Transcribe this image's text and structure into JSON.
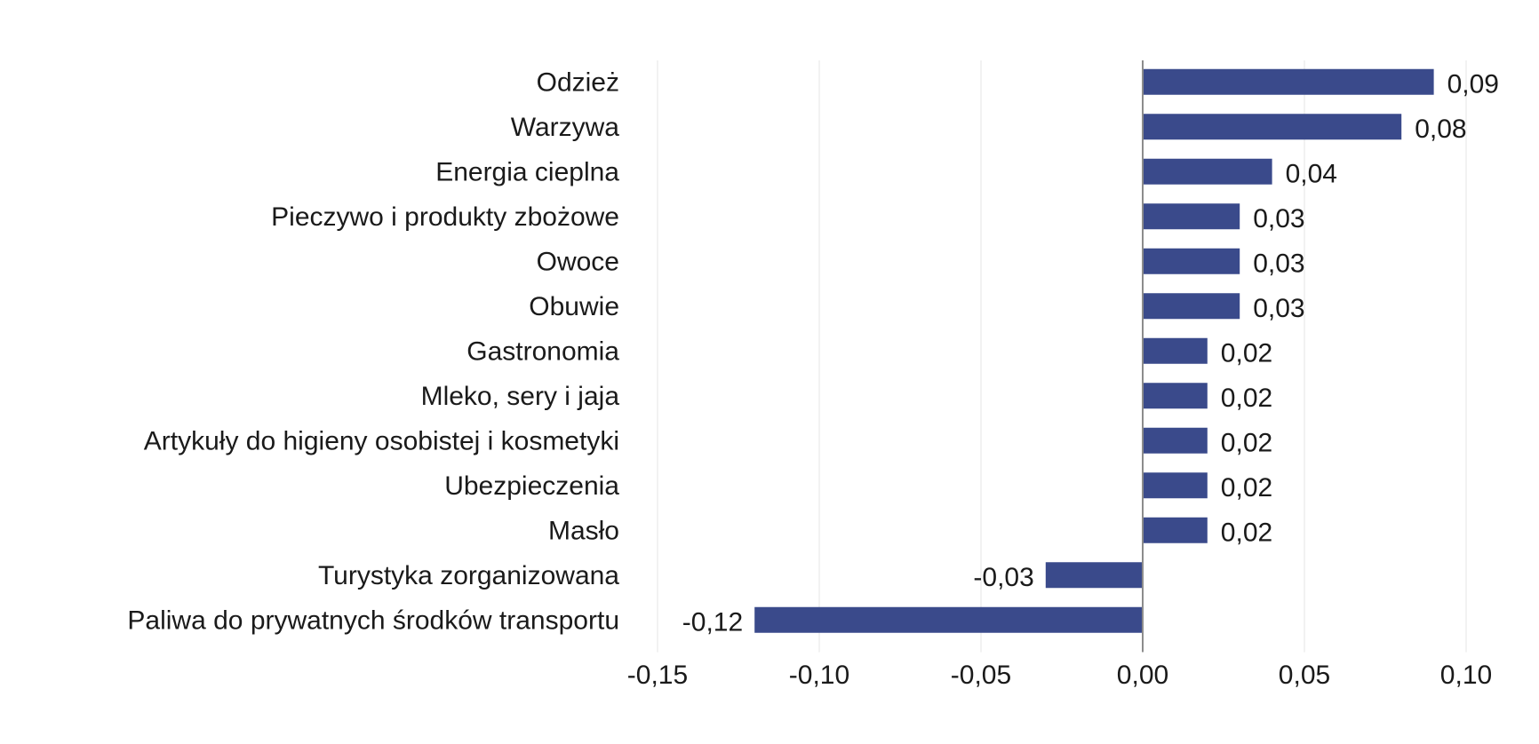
{
  "chart_data": {
    "type": "bar",
    "orientation": "horizontal",
    "title": "",
    "xlabel": "",
    "ylabel": "",
    "categories": [
      "Odzież",
      "Warzywa",
      "Energia cieplna",
      "Pieczywo i produkty zbożowe",
      "Owoce",
      "Obuwie",
      "Gastronomia",
      "Mleko, sery i jaja",
      "Artykuły do higieny osobistej i kosmetyki",
      "Ubezpieczenia",
      "Masło",
      "Turystyka zorganizowana",
      "Paliwa do prywatnych środków transportu"
    ],
    "values": [
      0.09,
      0.08,
      0.04,
      0.03,
      0.03,
      0.03,
      0.02,
      0.02,
      0.02,
      0.02,
      0.02,
      -0.03,
      -0.12
    ],
    "value_labels": [
      "0,09",
      "0,08",
      "0,04",
      "0,03",
      "0,03",
      "0,03",
      "0,02",
      "0,02",
      "0,02",
      "0,02",
      "0,02",
      "-0,03",
      "-0,12"
    ],
    "xlim": [
      -0.15,
      0.1
    ],
    "x_ticks": [
      -0.15,
      -0.1,
      -0.05,
      0.0,
      0.05,
      0.1
    ],
    "x_tick_labels": [
      "-0,15",
      "-0,10",
      "-0,05",
      "0,00",
      "0,05",
      "0,10"
    ],
    "grid": "vertical",
    "legend": "none",
    "bar_color": "#3a4a8b"
  }
}
